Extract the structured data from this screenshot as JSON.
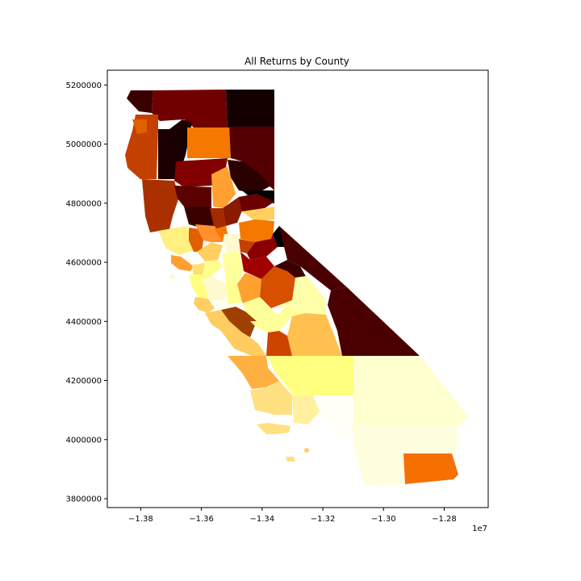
{
  "chart_data": {
    "type": "choropleth",
    "title": "All Returns by County",
    "xlabel": "",
    "ylabel": "",
    "x_offset_label": "1e7",
    "xlim": [
      -1.391,
      -1.2655
    ],
    "ylim": [
      3770000,
      5250000
    ],
    "x_ticks": [
      {
        "value": -1.38,
        "label": "−1.38"
      },
      {
        "value": -1.36,
        "label": "−1.36"
      },
      {
        "value": -1.34,
        "label": "−1.34"
      },
      {
        "value": -1.32,
        "label": "−1.32"
      },
      {
        "value": -1.3,
        "label": "−1.30"
      },
      {
        "value": -1.28,
        "label": "−1.28"
      }
    ],
    "y_ticks": [
      {
        "value": 3800000,
        "label": "3800000"
      },
      {
        "value": 4000000,
        "label": "4000000"
      },
      {
        "value": 4200000,
        "label": "4200000"
      },
      {
        "value": 4400000,
        "label": "4400000"
      },
      {
        "value": 4600000,
        "label": "4600000"
      },
      {
        "value": 4800000,
        "label": "4800000"
      },
      {
        "value": 5000000,
        "label": "5000000"
      },
      {
        "value": 5200000,
        "label": "5200000"
      }
    ],
    "grid": false,
    "legend": "none",
    "colormap": "afmhot"
  }
}
